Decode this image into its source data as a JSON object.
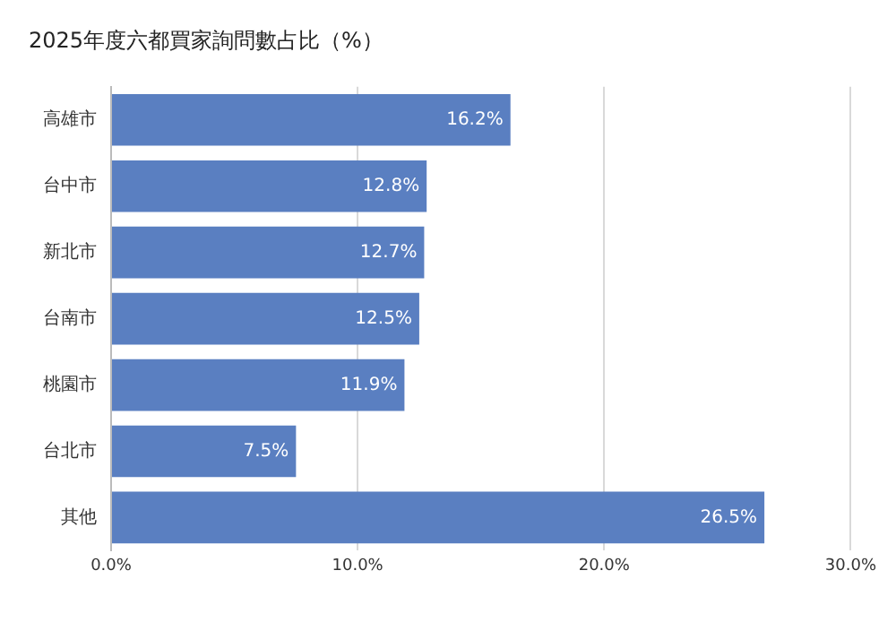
{
  "chart_data": {
    "type": "bar",
    "orientation": "horizontal",
    "title": "2025年度六都買家詢問數占比（%）",
    "categories": [
      "高雄市",
      "台中市",
      "新北市",
      "台南市",
      "桃園市",
      "台北市",
      "其他"
    ],
    "values": [
      16.2,
      12.8,
      12.7,
      12.5,
      11.9,
      7.5,
      26.5
    ],
    "value_labels": [
      "16.2%",
      "12.8%",
      "12.7%",
      "12.5%",
      "11.9%",
      "7.5%",
      "26.5%"
    ],
    "color": "#5a7fc1",
    "xlim": [
      0,
      30
    ],
    "xticks": [
      {
        "value": 0,
        "label": "0.0%"
      },
      {
        "value": 10,
        "label": "10.0%"
      },
      {
        "value": 20,
        "label": "20.0%"
      },
      {
        "value": 30,
        "label": "30.0%"
      }
    ],
    "grid": "x",
    "legend": false
  }
}
